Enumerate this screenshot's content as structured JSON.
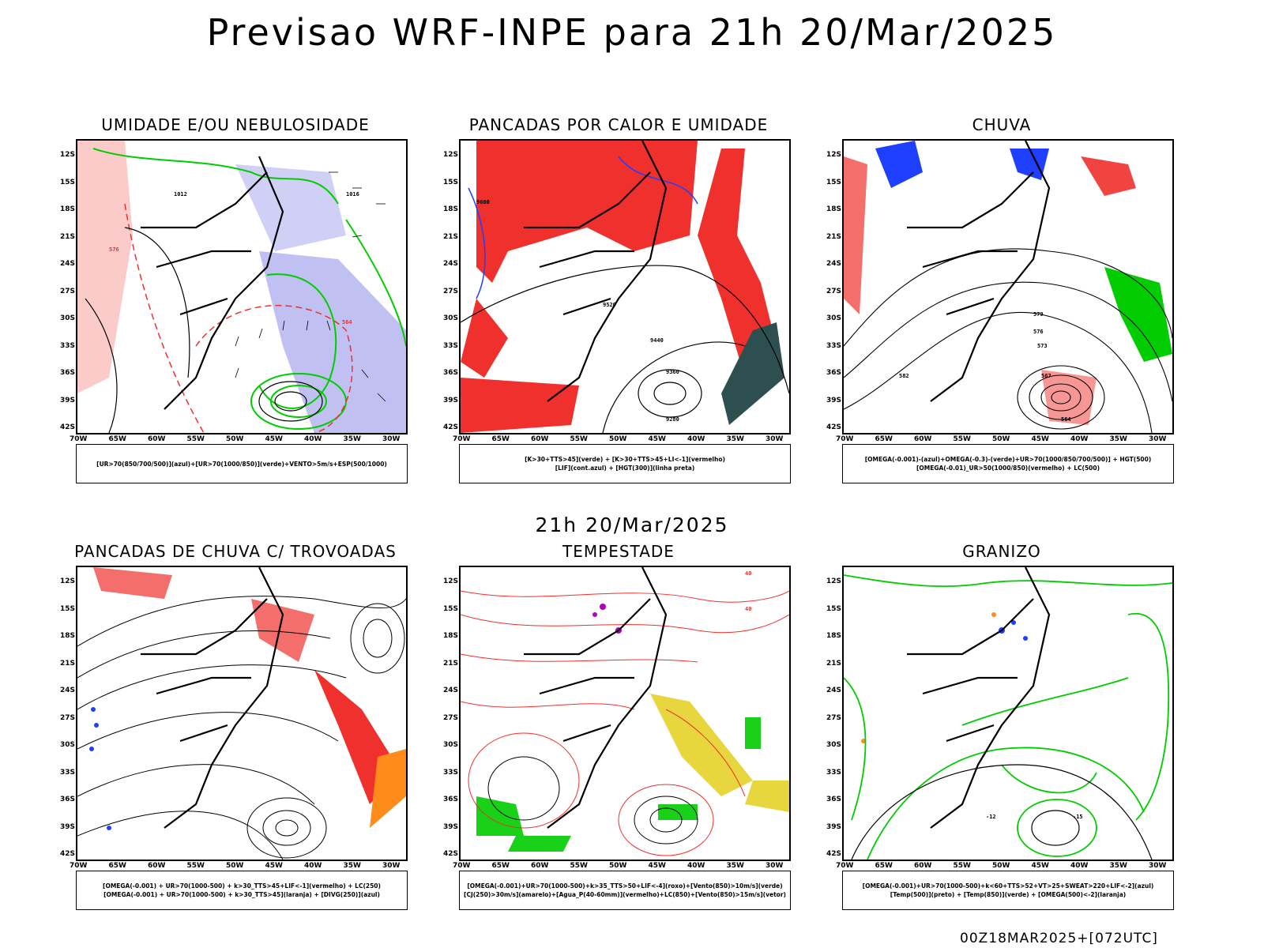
{
  "title": "Previsao WRF-INPE  para 21h 20/Mar/2025",
  "subtitle": "21h 20/Mar/2025",
  "footer": "00Z18MAR2025+[072UTC]",
  "lat_labels": [
    "12S",
    "15S",
    "18S",
    "21S",
    "24S",
    "27S",
    "30S",
    "33S",
    "36S",
    "39S",
    "42S"
  ],
  "lon_labels": [
    "70W",
    "65W",
    "60W",
    "55W",
    "50W",
    "45W",
    "40W",
    "35W",
    "30W"
  ],
  "panels": [
    {
      "title": "UMIDADE E/OU NEBULOSIDADE",
      "legend": [
        "[UR>70(850/700/500)](azul)+[UR>70(1000/850)](verde)+VENTO>5m/s+ESP(500/1000)"
      ],
      "contour_labels": [
        "1012",
        "1016",
        "576",
        "564"
      ]
    },
    {
      "title": "PANCADAS POR CALOR E UMIDADE",
      "legend": [
        "[K>30+TTS>45](verde) + [K>30+TTS>45+LI<-1](vermelho)",
        "[LIF](cont.azul) + [HGT(300)](linha preta)"
      ],
      "contour_labels": [
        "9600",
        "9520",
        "9440",
        "9360",
        "9280"
      ]
    },
    {
      "title": "CHUVA",
      "legend": [
        "[OMEGA(-0.001)-(azul)+OMEGA(-0.3)-(verde)+UR>70(1000/850/700/500)] + HGT(500)",
        "[OMEGA(-0.01)_UR>50(1000/850)(vermelho) + LC(500)"
      ],
      "contour_labels": [
        "579",
        "576",
        "573",
        "567",
        "564",
        "582"
      ]
    },
    {
      "title": "PANCADAS DE CHUVA C/ TROVOADAS",
      "legend": [
        "[OMEGA(-0.001) + UR>70(1000-500) + k>30_TTS>45+LIF<-1](vermelho) + LC(250)",
        "[OMEGA(-0.001) + UR>70(1000-500) + k>30_TTS>45](laranja) + [DIVG(250)](azul)"
      ],
      "contour_labels": []
    },
    {
      "title": "TEMPESTADE",
      "legend": [
        "[OMEGA(-0.001)+UR>70(1000-500)+k>35_TTS>50+LIF<-4](roxo)+[Vento(850)>10m/s](verde)",
        "[CJ(250)>30m/s](amarelo)+[Agua_P(40-60mm)](vermelho)+LC(850)+[Vento(850)>15m/s](vetor)"
      ],
      "contour_labels": [
        "40",
        "40"
      ]
    },
    {
      "title": "GRANIZO",
      "legend": [
        "[OMEGA(-0.001)+UR>70(1000-500)+k<60+TTS>52+VT>25+SWEAT>220+LIF<-2](azul)",
        "[Temp(500)](preto) + [Temp(850)](verde) + [OMEGA(500)<-2](laranja)"
      ],
      "contour_labels": [
        "-12",
        "-15"
      ]
    }
  ],
  "colors": {
    "red": "#f0302c",
    "green": "#00cc00",
    "blue": "#1f3fff",
    "lavender": "#b0b0f0",
    "darkteal": "#2e4f4f",
    "yellow": "#e6d22a",
    "orange": "#ff8c1a",
    "purple": "#b000c0"
  }
}
